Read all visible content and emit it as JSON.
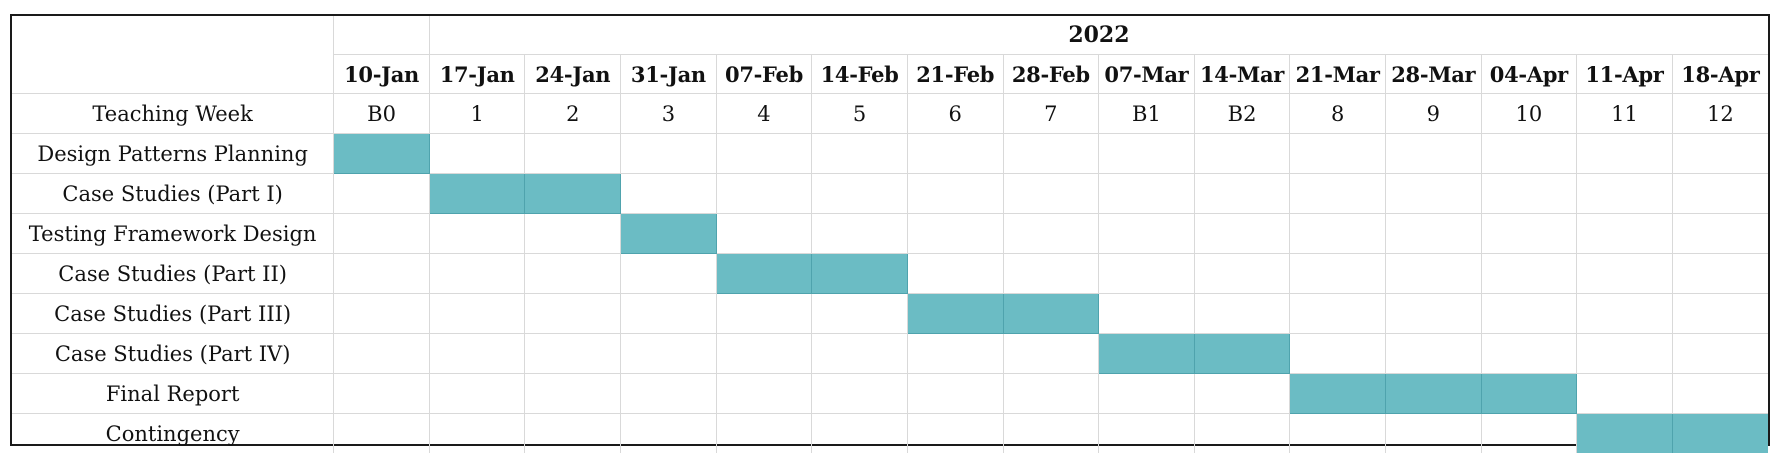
{
  "year": "2022",
  "weeks": [
    {
      "date": "10-Jan",
      "teaching_week": "B0"
    },
    {
      "date": "17-Jan",
      "teaching_week": "1"
    },
    {
      "date": "24-Jan",
      "teaching_week": "2"
    },
    {
      "date": "31-Jan",
      "teaching_week": "3"
    },
    {
      "date": "07-Feb",
      "teaching_week": "4"
    },
    {
      "date": "14-Feb",
      "teaching_week": "5"
    },
    {
      "date": "21-Feb",
      "teaching_week": "6"
    },
    {
      "date": "28-Feb",
      "teaching_week": "7"
    },
    {
      "date": "07-Mar",
      "teaching_week": "B1"
    },
    {
      "date": "14-Mar",
      "teaching_week": "B2"
    },
    {
      "date": "21-Mar",
      "teaching_week": "8"
    },
    {
      "date": "28-Mar",
      "teaching_week": "9"
    },
    {
      "date": "04-Apr",
      "teaching_week": "10"
    },
    {
      "date": "11-Apr",
      "teaching_week": "11"
    },
    {
      "date": "18-Apr",
      "teaching_week": "12"
    }
  ],
  "teaching_week_label": "Teaching Week",
  "bar_color": "#6bbcc4",
  "tasks": [
    {
      "name": "Design Patterns Planning",
      "start_week": "10-Jan",
      "end_week": "10-Jan"
    },
    {
      "name": "Case Studies (Part I)",
      "start_week": "17-Jan",
      "end_week": "24-Jan"
    },
    {
      "name": "Testing Framework Design",
      "start_week": "31-Jan",
      "end_week": "31-Jan"
    },
    {
      "name": "Case Studies (Part II)",
      "start_week": "07-Feb",
      "end_week": "14-Feb"
    },
    {
      "name": "Case Studies (Part III)",
      "start_week": "21-Feb",
      "end_week": "28-Feb"
    },
    {
      "name": "Case Studies (Part IV)",
      "start_week": "07-Mar",
      "end_week": "14-Mar"
    },
    {
      "name": "Final Report",
      "start_week": "21-Mar",
      "end_week": "04-Apr"
    },
    {
      "name": "Contingency",
      "start_week": "11-Apr",
      "end_week": "18-Apr"
    }
  ]
}
